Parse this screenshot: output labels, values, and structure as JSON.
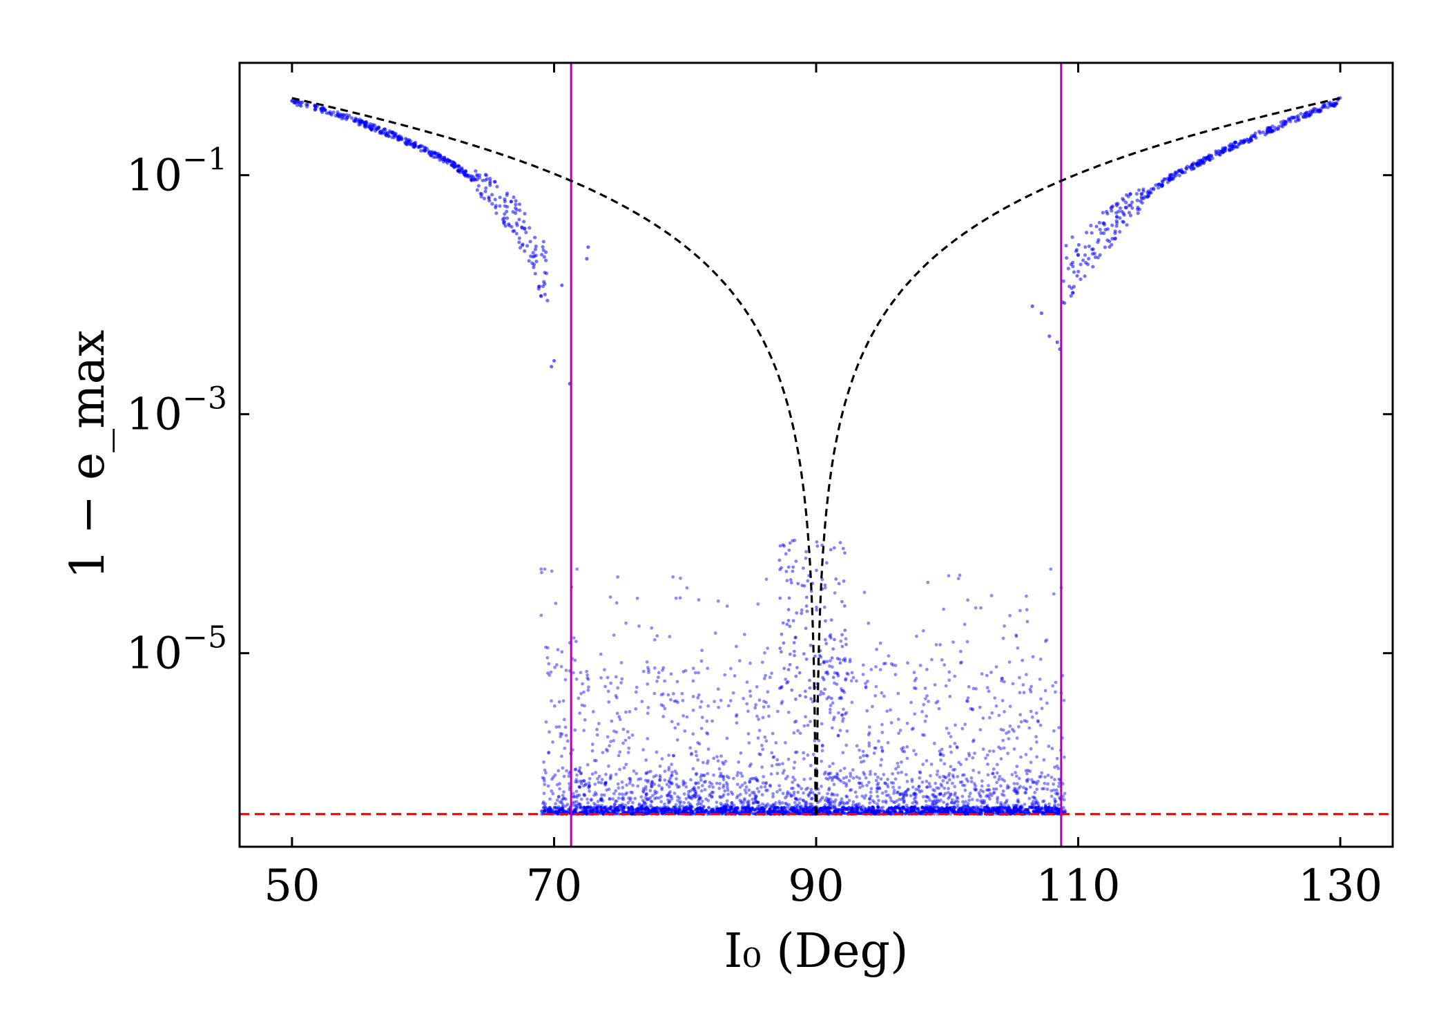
{
  "chart_data": {
    "type": "scatter",
    "title": "",
    "xlabel": "I₀ (Deg)",
    "ylabel": "1 − e_max",
    "xlim": [
      46,
      134
    ],
    "ylim_log10": [
      -6.62,
      -0.06
    ],
    "y_scale": "log",
    "x_ticks": [
      50,
      70,
      90,
      110,
      130
    ],
    "x_tick_labels": [
      "50",
      "70",
      "90",
      "110",
      "130"
    ],
    "y_ticks_log10": [
      -1,
      -3,
      -5
    ],
    "y_tick_labels": [
      {
        "base": "10",
        "exp": "−1"
      },
      {
        "base": "10",
        "exp": "−3"
      },
      {
        "base": "10",
        "exp": "−5"
      }
    ],
    "reference_lines": {
      "vertical_magenta_x": [
        71.3,
        108.7
      ],
      "horizontal_red_dashed_y": 4.5e-07
    },
    "analytic_curve": {
      "style": "black dashed",
      "formula": "1 - sqrt(1 - (5/3) cos^2 I0)",
      "x_range": [
        50,
        130
      ]
    },
    "series": [
      {
        "name": "simulation",
        "color": "#0000ff",
        "upper_branch_left_I0": [
          50,
          54,
          58,
          62,
          65,
          67,
          68,
          69
        ],
        "upper_branch_left_1_minus_emax": [
          0.42,
          0.31,
          0.21,
          0.13,
          0.075,
          0.045,
          0.03,
          0.016
        ],
        "upper_branch_right_I0": [
          109,
          110,
          112,
          114,
          117,
          121,
          126,
          130
        ],
        "upper_branch_right_1_minus_emax": [
          0.014,
          0.02,
          0.033,
          0.055,
          0.095,
          0.16,
          0.28,
          0.42
        ],
        "low_floor_I0_range": [
          69,
          109
        ],
        "low_floor_1_minus_emax": 4.5e-07,
        "scatter_max_1_minus_emax": 6e-05
      }
    ]
  },
  "colors": {
    "points": "#0000ff",
    "vertical_lines": "#b000b0",
    "floor_line": "#ff0000",
    "curve": "#000000"
  }
}
